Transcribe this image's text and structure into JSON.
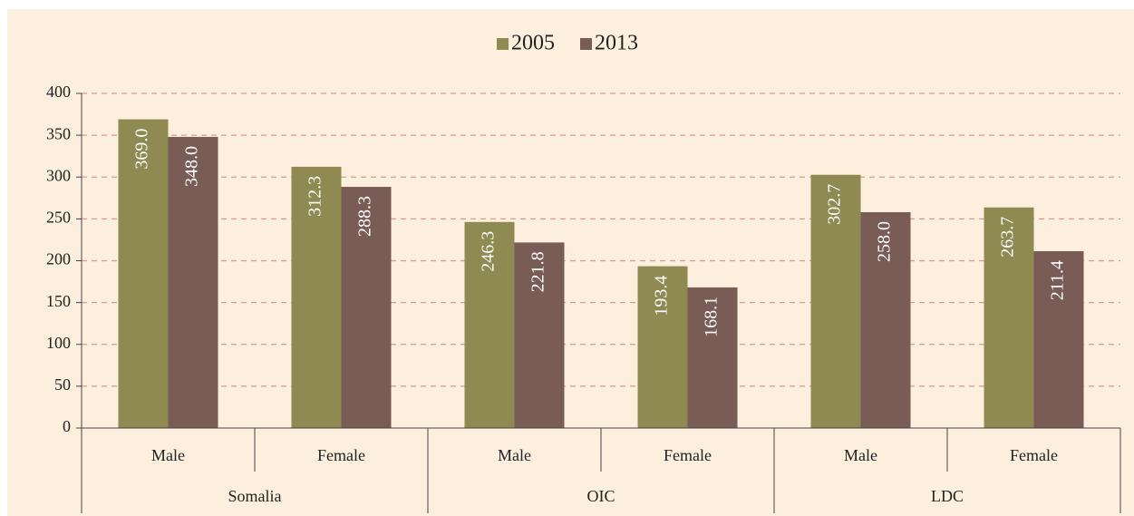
{
  "chart_data": {
    "type": "bar",
    "groups": [
      "Somalia",
      "OIC",
      "LDC"
    ],
    "categories": [
      "Male",
      "Female",
      "Male",
      "Female",
      "Male",
      "Female"
    ],
    "series": [
      {
        "name": "2005",
        "color": "#8e8a52",
        "values": [
          369,
          312.3,
          246.3,
          193.4,
          302.7,
          263.7
        ],
        "value_labels": [
          "369.0",
          "312.3",
          "246.3",
          "193.4",
          "302.7",
          "263.7"
        ]
      },
      {
        "name": "2013",
        "color": "#785c55",
        "values": [
          348,
          288.3,
          221.8,
          168.1,
          258,
          211.4
        ],
        "value_labels": [
          "348.0",
          "288.3",
          "221.8",
          "168.1",
          "258.0",
          "211.4"
        ]
      }
    ],
    "ylim": [
      0,
      400
    ],
    "yticks": [
      0,
      50,
      100,
      150,
      200,
      250,
      300,
      350,
      400
    ],
    "grid": true,
    "legend": "top"
  }
}
